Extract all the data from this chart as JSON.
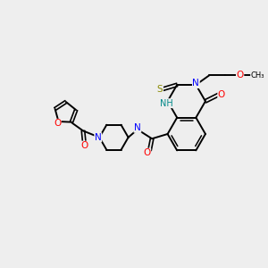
{
  "background_color": "#eeeeee",
  "bond_color": "#000000",
  "atom_colors": {
    "N": "#0000FF",
    "O": "#FF0000",
    "S": "#888800",
    "NH": "#008888",
    "C": "#000000"
  },
  "figsize": [
    3.0,
    3.0
  ],
  "dpi": 100
}
